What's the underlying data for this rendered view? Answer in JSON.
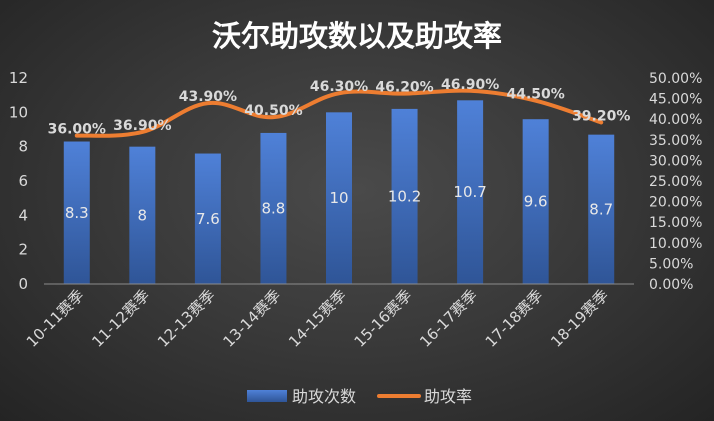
{
  "chart_data": {
    "type": "bar",
    "title": "沃尔助攻数以及助攻率",
    "categories": [
      "10-11赛季",
      "11-12赛季",
      "12-13赛季",
      "13-14赛季",
      "14-15赛季",
      "15-16赛季",
      "16-17赛季",
      "17-18赛季",
      "18-19赛季"
    ],
    "series": [
      {
        "name": "助攻次数",
        "type": "bar",
        "axis": "left",
        "values": [
          8.3,
          8,
          7.6,
          8.8,
          10,
          10.2,
          10.7,
          9.6,
          8.7
        ]
      },
      {
        "name": "助攻率",
        "type": "line",
        "axis": "right",
        "values": [
          36.0,
          36.9,
          43.9,
          40.5,
          46.3,
          46.2,
          46.9,
          44.5,
          39.2
        ]
      }
    ],
    "bar_labels": [
      "8.3",
      "8",
      "7.6",
      "8.8",
      "10",
      "10.2",
      "10.7",
      "9.6",
      "8.7"
    ],
    "line_labels": [
      "36.00%",
      "36.90%",
      "43.90%",
      "40.50%",
      "46.30%",
      "46.20%",
      "46.90%",
      "44.50%",
      "39.20%"
    ],
    "y_left": {
      "ticks": [
        "0",
        "2",
        "4",
        "6",
        "8",
        "10",
        "12"
      ],
      "min": 0,
      "max": 12
    },
    "y_right": {
      "ticks": [
        "0.00%",
        "5.00%",
        "10.00%",
        "15.00%",
        "20.00%",
        "25.00%",
        "30.00%",
        "35.00%",
        "40.00%",
        "45.00%",
        "50.00%"
      ],
      "min": 0,
      "max": 50
    },
    "grid": false,
    "legend_position": "bottom",
    "colors": {
      "bar": "#4472c4",
      "bar_dark": "#2f5597",
      "line": "#ed7d31",
      "text": "#d9d9d9",
      "title": "#ffffff"
    }
  }
}
